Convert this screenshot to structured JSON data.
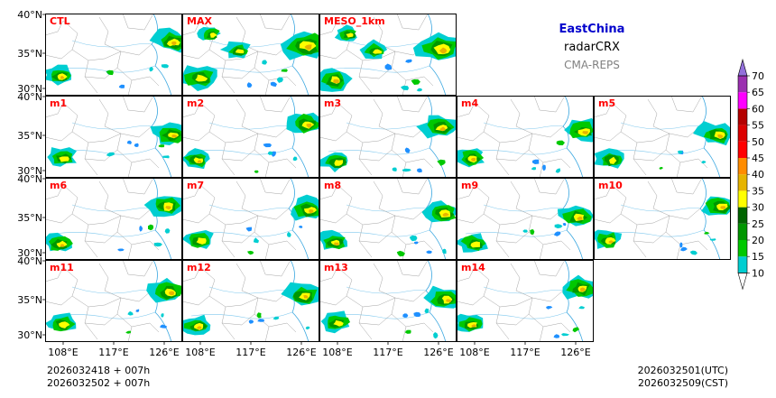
{
  "header": {
    "region": "EastChina",
    "product": "radarCRX",
    "system": "CMA-REPS",
    "region_color": "#0000cc"
  },
  "panels": [
    {
      "label": "CTL",
      "row": 0,
      "col": 0
    },
    {
      "label": "MAX",
      "row": 0,
      "col": 1
    },
    {
      "label": "MESO_1km",
      "row": 0,
      "col": 2
    },
    {
      "label": "m1",
      "row": 1,
      "col": 0
    },
    {
      "label": "m2",
      "row": 1,
      "col": 1
    },
    {
      "label": "m3",
      "row": 1,
      "col": 2
    },
    {
      "label": "m4",
      "row": 1,
      "col": 3
    },
    {
      "label": "m5",
      "row": 1,
      "col": 4
    },
    {
      "label": "m6",
      "row": 2,
      "col": 0
    },
    {
      "label": "m7",
      "row": 2,
      "col": 1
    },
    {
      "label": "m8",
      "row": 2,
      "col": 2
    },
    {
      "label": "m9",
      "row": 2,
      "col": 3
    },
    {
      "label": "m10",
      "row": 2,
      "col": 4
    },
    {
      "label": "m11",
      "row": 3,
      "col": 0
    },
    {
      "label": "m12",
      "row": 3,
      "col": 1
    },
    {
      "label": "m13",
      "row": 3,
      "col": 2
    },
    {
      "label": "m14",
      "row": 3,
      "col": 3
    }
  ],
  "panel_label_color": "#ff0000",
  "lat_labels": [
    "40°N",
    "35°N",
    "30°N"
  ],
  "lon_labels": [
    "108°E",
    "117°E",
    "126°E"
  ],
  "colorbar": {
    "levels": [
      "10",
      "15",
      "20",
      "25",
      "30",
      "35",
      "40",
      "45",
      "50",
      "55",
      "60",
      "65",
      "70"
    ],
    "colors": [
      "#1e90ff",
      "#00ced1",
      "#00c800",
      "#009600",
      "#006400",
      "#ffff00",
      "#e6b400",
      "#ff8c00",
      "#ff0000",
      "#dc0000",
      "#b40000",
      "#ff00ff",
      "#9b30b0",
      "#9370db"
    ]
  },
  "footer": {
    "left_line1": "2026032418  +  007h",
    "left_line2": "2026032502  +  007h",
    "right_line1": "2026032501(UTC)",
    "right_line2": "2026032509(CST)"
  }
}
